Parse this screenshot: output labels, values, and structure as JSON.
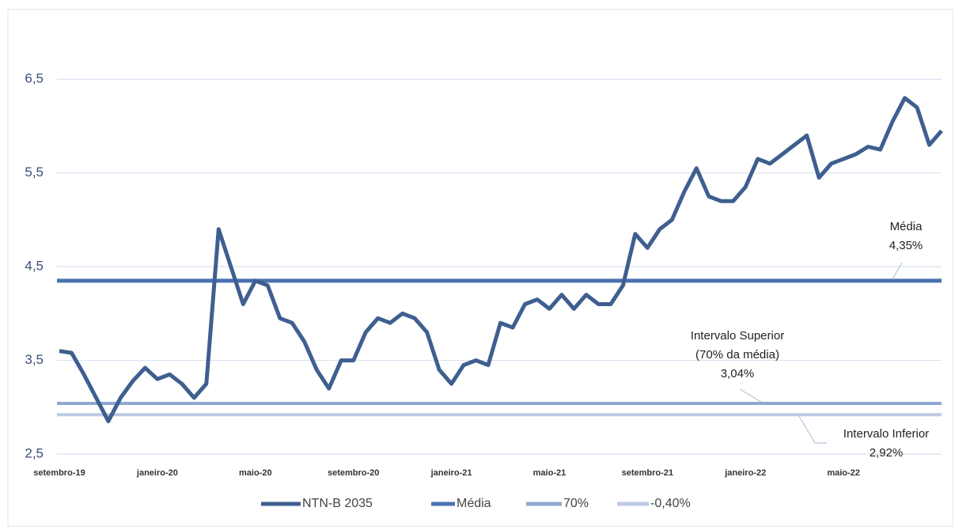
{
  "chart_data": {
    "type": "line",
    "categories": [
      "setembro-19",
      null,
      null,
      null,
      null,
      null,
      null,
      null,
      "janeiro-20",
      null,
      null,
      null,
      null,
      null,
      null,
      null,
      "maio-20",
      null,
      null,
      null,
      null,
      null,
      null,
      null,
      "setembro-20",
      null,
      null,
      null,
      null,
      null,
      null,
      null,
      "janeiro-21",
      null,
      null,
      null,
      null,
      null,
      null,
      null,
      "maio-21",
      null,
      null,
      null,
      null,
      null,
      null,
      null,
      "setembro-21",
      null,
      null,
      null,
      null,
      null,
      null,
      null,
      "janeiro-22",
      null,
      null,
      null,
      null,
      null,
      null,
      null,
      "maio-22",
      null,
      null,
      null,
      null,
      null,
      null,
      null,
      null
    ],
    "series": [
      {
        "name": "NTN-B 2035",
        "color": "#3e5f8f",
        "values": [
          3.6,
          3.58,
          3.35,
          3.1,
          2.85,
          3.1,
          3.28,
          3.42,
          3.3,
          3.35,
          3.25,
          3.1,
          3.25,
          4.9,
          4.5,
          4.1,
          4.35,
          4.3,
          3.95,
          3.9,
          3.7,
          3.4,
          3.2,
          3.5,
          3.5,
          3.8,
          3.95,
          3.9,
          4.0,
          3.95,
          3.8,
          3.4,
          3.25,
          3.45,
          3.5,
          3.45,
          3.9,
          3.85,
          4.1,
          4.15,
          4.05,
          4.2,
          4.05,
          4.2,
          4.1,
          4.1,
          4.3,
          4.85,
          4.7,
          4.9,
          5.0,
          5.3,
          5.55,
          5.25,
          5.2,
          5.2,
          5.35,
          5.65,
          5.6,
          5.7,
          5.8,
          5.9,
          5.45,
          5.6,
          5.65,
          5.7,
          5.78,
          5.75,
          6.05,
          6.3,
          6.2,
          5.8,
          5.95
        ]
      },
      {
        "name": "Média",
        "color": "#4a72b0",
        "values": [
          4.35,
          4.35,
          4.35,
          4.35,
          4.35,
          4.35,
          4.35,
          4.35,
          4.35,
          4.35,
          4.35,
          4.35,
          4.35,
          4.35,
          4.35,
          4.35,
          4.35,
          4.35,
          4.35,
          4.35,
          4.35,
          4.35,
          4.35,
          4.35,
          4.35,
          4.35,
          4.35,
          4.35,
          4.35,
          4.35,
          4.35,
          4.35,
          4.35,
          4.35,
          4.35,
          4.35,
          4.35,
          4.35,
          4.35,
          4.35,
          4.35,
          4.35,
          4.35,
          4.35,
          4.35,
          4.35,
          4.35,
          4.35,
          4.35,
          4.35,
          4.35,
          4.35,
          4.35,
          4.35,
          4.35,
          4.35,
          4.35,
          4.35,
          4.35,
          4.35,
          4.35,
          4.35,
          4.35,
          4.35,
          4.35,
          4.35,
          4.35,
          4.35,
          4.35,
          4.35,
          4.35,
          4.35,
          4.35
        ]
      },
      {
        "name": "70%",
        "color": "#8ea8cf",
        "values": [
          3.04,
          3.04,
          3.04,
          3.04,
          3.04,
          3.04,
          3.04,
          3.04,
          3.04,
          3.04,
          3.04,
          3.04,
          3.04,
          3.04,
          3.04,
          3.04,
          3.04,
          3.04,
          3.04,
          3.04,
          3.04,
          3.04,
          3.04,
          3.04,
          3.04,
          3.04,
          3.04,
          3.04,
          3.04,
          3.04,
          3.04,
          3.04,
          3.04,
          3.04,
          3.04,
          3.04,
          3.04,
          3.04,
          3.04,
          3.04,
          3.04,
          3.04,
          3.04,
          3.04,
          3.04,
          3.04,
          3.04,
          3.04,
          3.04,
          3.04,
          3.04,
          3.04,
          3.04,
          3.04,
          3.04,
          3.04,
          3.04,
          3.04,
          3.04,
          3.04,
          3.04,
          3.04,
          3.04,
          3.04,
          3.04,
          3.04,
          3.04,
          3.04,
          3.04,
          3.04,
          3.04,
          3.04,
          3.04
        ]
      },
      {
        "name": "-0,40%",
        "color": "#bccbe2",
        "values": [
          2.92,
          2.92,
          2.92,
          2.92,
          2.92,
          2.92,
          2.92,
          2.92,
          2.92,
          2.92,
          2.92,
          2.92,
          2.92,
          2.92,
          2.92,
          2.92,
          2.92,
          2.92,
          2.92,
          2.92,
          2.92,
          2.92,
          2.92,
          2.92,
          2.92,
          2.92,
          2.92,
          2.92,
          2.92,
          2.92,
          2.92,
          2.92,
          2.92,
          2.92,
          2.92,
          2.92,
          2.92,
          2.92,
          2.92,
          2.92,
          2.92,
          2.92,
          2.92,
          2.92,
          2.92,
          2.92,
          2.92,
          2.92,
          2.92,
          2.92,
          2.92,
          2.92,
          2.92,
          2.92,
          2.92,
          2.92,
          2.92,
          2.92,
          2.92,
          2.92,
          2.92,
          2.92,
          2.92,
          2.92,
          2.92,
          2.92,
          2.92,
          2.92,
          2.92,
          2.92,
          2.92,
          2.92,
          2.92
        ]
      }
    ],
    "ylim": [
      2.5,
      7.0
    ],
    "yticks": [
      {
        "value": 2.5,
        "label": "2,5"
      },
      {
        "value": 3.5,
        "label": "3,5"
      },
      {
        "value": 4.5,
        "label": "4,5"
      },
      {
        "value": 5.5,
        "label": "5,5"
      },
      {
        "value": 6.5,
        "label": "6,5"
      }
    ],
    "grid": true,
    "legend": "bottom",
    "annotations": [
      {
        "lines": [
          "Média",
          "4,35%"
        ],
        "value": 4.35
      },
      {
        "lines": [
          "Intervalo Superior",
          "(70% da média)",
          "3,04%"
        ],
        "value": 3.04
      },
      {
        "lines": [
          "Intervalo Inferior",
          "2,92%"
        ],
        "value": 2.92
      }
    ]
  }
}
